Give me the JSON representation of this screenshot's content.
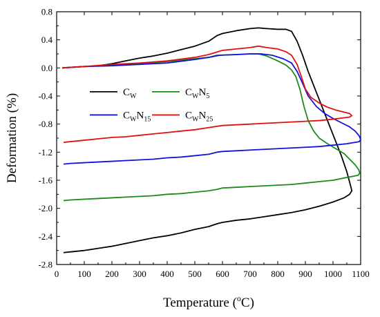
{
  "chart_data": {
    "type": "line",
    "xlabel": "Temperature (°C)",
    "ylabel": "Deformation (%)",
    "xlim": [
      0,
      1100
    ],
    "ylim": [
      -2.8,
      0.8
    ],
    "xticks": [
      "0",
      "100",
      "200",
      "300",
      "400",
      "500",
      "600",
      "700",
      "800",
      "900",
      "1000",
      "1100"
    ],
    "yticks": [
      "0.8",
      "0.4",
      "0.0",
      "-0.4",
      "-0.8",
      "-1.2",
      "-1.6",
      "-2.0",
      "-2.4",
      "-2.8"
    ],
    "grid": false,
    "legend_position": "upper-left",
    "series": [
      {
        "name": "CW",
        "color": "#000000",
        "points": [
          [
            20,
            0.0
          ],
          [
            60,
            0.01
          ],
          [
            100,
            0.02
          ],
          [
            150,
            0.03
          ],
          [
            200,
            0.06
          ],
          [
            250,
            0.1
          ],
          [
            300,
            0.14
          ],
          [
            350,
            0.17
          ],
          [
            400,
            0.21
          ],
          [
            450,
            0.26
          ],
          [
            500,
            0.31
          ],
          [
            550,
            0.38
          ],
          [
            580,
            0.46
          ],
          [
            600,
            0.49
          ],
          [
            650,
            0.53
          ],
          [
            700,
            0.56
          ],
          [
            730,
            0.57
          ],
          [
            760,
            0.56
          ],
          [
            800,
            0.55
          ],
          [
            830,
            0.55
          ],
          [
            850,
            0.52
          ],
          [
            870,
            0.38
          ],
          [
            890,
            0.18
          ],
          [
            910,
            -0.05
          ],
          [
            930,
            -0.25
          ],
          [
            950,
            -0.45
          ],
          [
            970,
            -0.65
          ],
          [
            990,
            -0.85
          ],
          [
            1010,
            -1.05
          ],
          [
            1030,
            -1.25
          ],
          [
            1050,
            -1.48
          ],
          [
            1065,
            -1.7
          ],
          [
            1068,
            -1.75
          ],
          [
            1060,
            -1.8
          ],
          [
            1040,
            -1.85
          ],
          [
            1000,
            -1.91
          ],
          [
            950,
            -1.97
          ],
          [
            900,
            -2.02
          ],
          [
            850,
            -2.06
          ],
          [
            800,
            -2.09
          ],
          [
            750,
            -2.12
          ],
          [
            700,
            -2.15
          ],
          [
            650,
            -2.17
          ],
          [
            600,
            -2.2
          ],
          [
            580,
            -2.22
          ],
          [
            550,
            -2.26
          ],
          [
            500,
            -2.3
          ],
          [
            450,
            -2.35
          ],
          [
            400,
            -2.39
          ],
          [
            350,
            -2.42
          ],
          [
            300,
            -2.46
          ],
          [
            250,
            -2.5
          ],
          [
            200,
            -2.54
          ],
          [
            150,
            -2.57
          ],
          [
            100,
            -2.6
          ],
          [
            50,
            -2.62
          ],
          [
            25,
            -2.63
          ]
        ]
      },
      {
        "name": "CWN5",
        "color": "#1a8a1a",
        "points": [
          [
            20,
            0.0
          ],
          [
            100,
            0.02
          ],
          [
            200,
            0.04
          ],
          [
            300,
            0.06
          ],
          [
            400,
            0.09
          ],
          [
            500,
            0.13
          ],
          [
            550,
            0.15
          ],
          [
            580,
            0.18
          ],
          [
            650,
            0.19
          ],
          [
            700,
            0.2
          ],
          [
            730,
            0.2
          ],
          [
            760,
            0.17
          ],
          [
            800,
            0.1
          ],
          [
            830,
            0.04
          ],
          [
            850,
            -0.03
          ],
          [
            865,
            -0.12
          ],
          [
            880,
            -0.3
          ],
          [
            895,
            -0.55
          ],
          [
            910,
            -0.75
          ],
          [
            930,
            -0.9
          ],
          [
            950,
            -1.0
          ],
          [
            980,
            -1.08
          ],
          [
            1010,
            -1.15
          ],
          [
            1040,
            -1.22
          ],
          [
            1060,
            -1.3
          ],
          [
            1080,
            -1.38
          ],
          [
            1093,
            -1.45
          ],
          [
            1097,
            -1.5
          ],
          [
            1090,
            -1.53
          ],
          [
            1050,
            -1.56
          ],
          [
            1000,
            -1.6
          ],
          [
            950,
            -1.62
          ],
          [
            900,
            -1.64
          ],
          [
            850,
            -1.66
          ],
          [
            800,
            -1.67
          ],
          [
            750,
            -1.68
          ],
          [
            700,
            -1.69
          ],
          [
            650,
            -1.7
          ],
          [
            600,
            -1.71
          ],
          [
            580,
            -1.73
          ],
          [
            550,
            -1.75
          ],
          [
            500,
            -1.77
          ],
          [
            450,
            -1.79
          ],
          [
            400,
            -1.8
          ],
          [
            350,
            -1.82
          ],
          [
            300,
            -1.83
          ],
          [
            250,
            -1.84
          ],
          [
            200,
            -1.85
          ],
          [
            150,
            -1.86
          ],
          [
            100,
            -1.87
          ],
          [
            50,
            -1.88
          ],
          [
            25,
            -1.89
          ]
        ]
      },
      {
        "name": "CWN15",
        "color": "#1010e0",
        "points": [
          [
            20,
            0.0
          ],
          [
            100,
            0.02
          ],
          [
            200,
            0.03
          ],
          [
            300,
            0.05
          ],
          [
            400,
            0.07
          ],
          [
            500,
            0.12
          ],
          [
            550,
            0.15
          ],
          [
            590,
            0.18
          ],
          [
            650,
            0.19
          ],
          [
            700,
            0.2
          ],
          [
            740,
            0.2
          ],
          [
            780,
            0.18
          ],
          [
            820,
            0.13
          ],
          [
            850,
            0.07
          ],
          [
            870,
            -0.05
          ],
          [
            890,
            -0.22
          ],
          [
            910,
            -0.4
          ],
          [
            940,
            -0.55
          ],
          [
            970,
            -0.65
          ],
          [
            1000,
            -0.72
          ],
          [
            1030,
            -0.78
          ],
          [
            1060,
            -0.84
          ],
          [
            1080,
            -0.9
          ],
          [
            1095,
            -0.97
          ],
          [
            1100,
            -1.02
          ],
          [
            1095,
            -1.05
          ],
          [
            1050,
            -1.08
          ],
          [
            1000,
            -1.1
          ],
          [
            950,
            -1.12
          ],
          [
            900,
            -1.13
          ],
          [
            850,
            -1.14
          ],
          [
            800,
            -1.15
          ],
          [
            750,
            -1.16
          ],
          [
            700,
            -1.17
          ],
          [
            650,
            -1.18
          ],
          [
            600,
            -1.19
          ],
          [
            580,
            -1.2
          ],
          [
            550,
            -1.23
          ],
          [
            500,
            -1.25
          ],
          [
            450,
            -1.27
          ],
          [
            400,
            -1.28
          ],
          [
            350,
            -1.3
          ],
          [
            300,
            -1.31
          ],
          [
            250,
            -1.32
          ],
          [
            200,
            -1.33
          ],
          [
            150,
            -1.34
          ],
          [
            100,
            -1.35
          ],
          [
            50,
            -1.36
          ],
          [
            25,
            -1.37
          ]
        ]
      },
      {
        "name": "CWN25",
        "color": "#e01010",
        "points": [
          [
            20,
            0.0
          ],
          [
            100,
            0.02
          ],
          [
            200,
            0.05
          ],
          [
            300,
            0.07
          ],
          [
            400,
            0.1
          ],
          [
            500,
            0.15
          ],
          [
            550,
            0.19
          ],
          [
            600,
            0.25
          ],
          [
            650,
            0.27
          ],
          [
            700,
            0.29
          ],
          [
            730,
            0.31
          ],
          [
            760,
            0.29
          ],
          [
            800,
            0.27
          ],
          [
            830,
            0.23
          ],
          [
            850,
            0.18
          ],
          [
            870,
            0.05
          ],
          [
            885,
            -0.12
          ],
          [
            900,
            -0.3
          ],
          [
            920,
            -0.42
          ],
          [
            950,
            -0.5
          ],
          [
            980,
            -0.56
          ],
          [
            1010,
            -0.6
          ],
          [
            1040,
            -0.63
          ],
          [
            1060,
            -0.65
          ],
          [
            1068,
            -0.68
          ],
          [
            1060,
            -0.7
          ],
          [
            1000,
            -0.73
          ],
          [
            950,
            -0.75
          ],
          [
            900,
            -0.76
          ],
          [
            850,
            -0.77
          ],
          [
            800,
            -0.78
          ],
          [
            750,
            -0.79
          ],
          [
            700,
            -0.8
          ],
          [
            650,
            -0.81
          ],
          [
            600,
            -0.82
          ],
          [
            550,
            -0.85
          ],
          [
            500,
            -0.88
          ],
          [
            450,
            -0.9
          ],
          [
            400,
            -0.92
          ],
          [
            350,
            -0.94
          ],
          [
            300,
            -0.96
          ],
          [
            250,
            -0.98
          ],
          [
            200,
            -0.99
          ],
          [
            150,
            -1.01
          ],
          [
            100,
            -1.03
          ],
          [
            50,
            -1.05
          ],
          [
            25,
            -1.06
          ]
        ]
      }
    ],
    "legend": [
      {
        "base": "C",
        "sub1": "W",
        "mid": "",
        "sub2": "",
        "color": "#000000"
      },
      {
        "base": "C",
        "sub1": "W",
        "mid": "N",
        "sub2": "5",
        "color": "#1a8a1a"
      },
      {
        "base": "C",
        "sub1": "W",
        "mid": "N",
        "sub2": "15",
        "color": "#1010e0"
      },
      {
        "base": "C",
        "sub1": "W",
        "mid": "N",
        "sub2": "25",
        "color": "#e01010"
      }
    ]
  }
}
